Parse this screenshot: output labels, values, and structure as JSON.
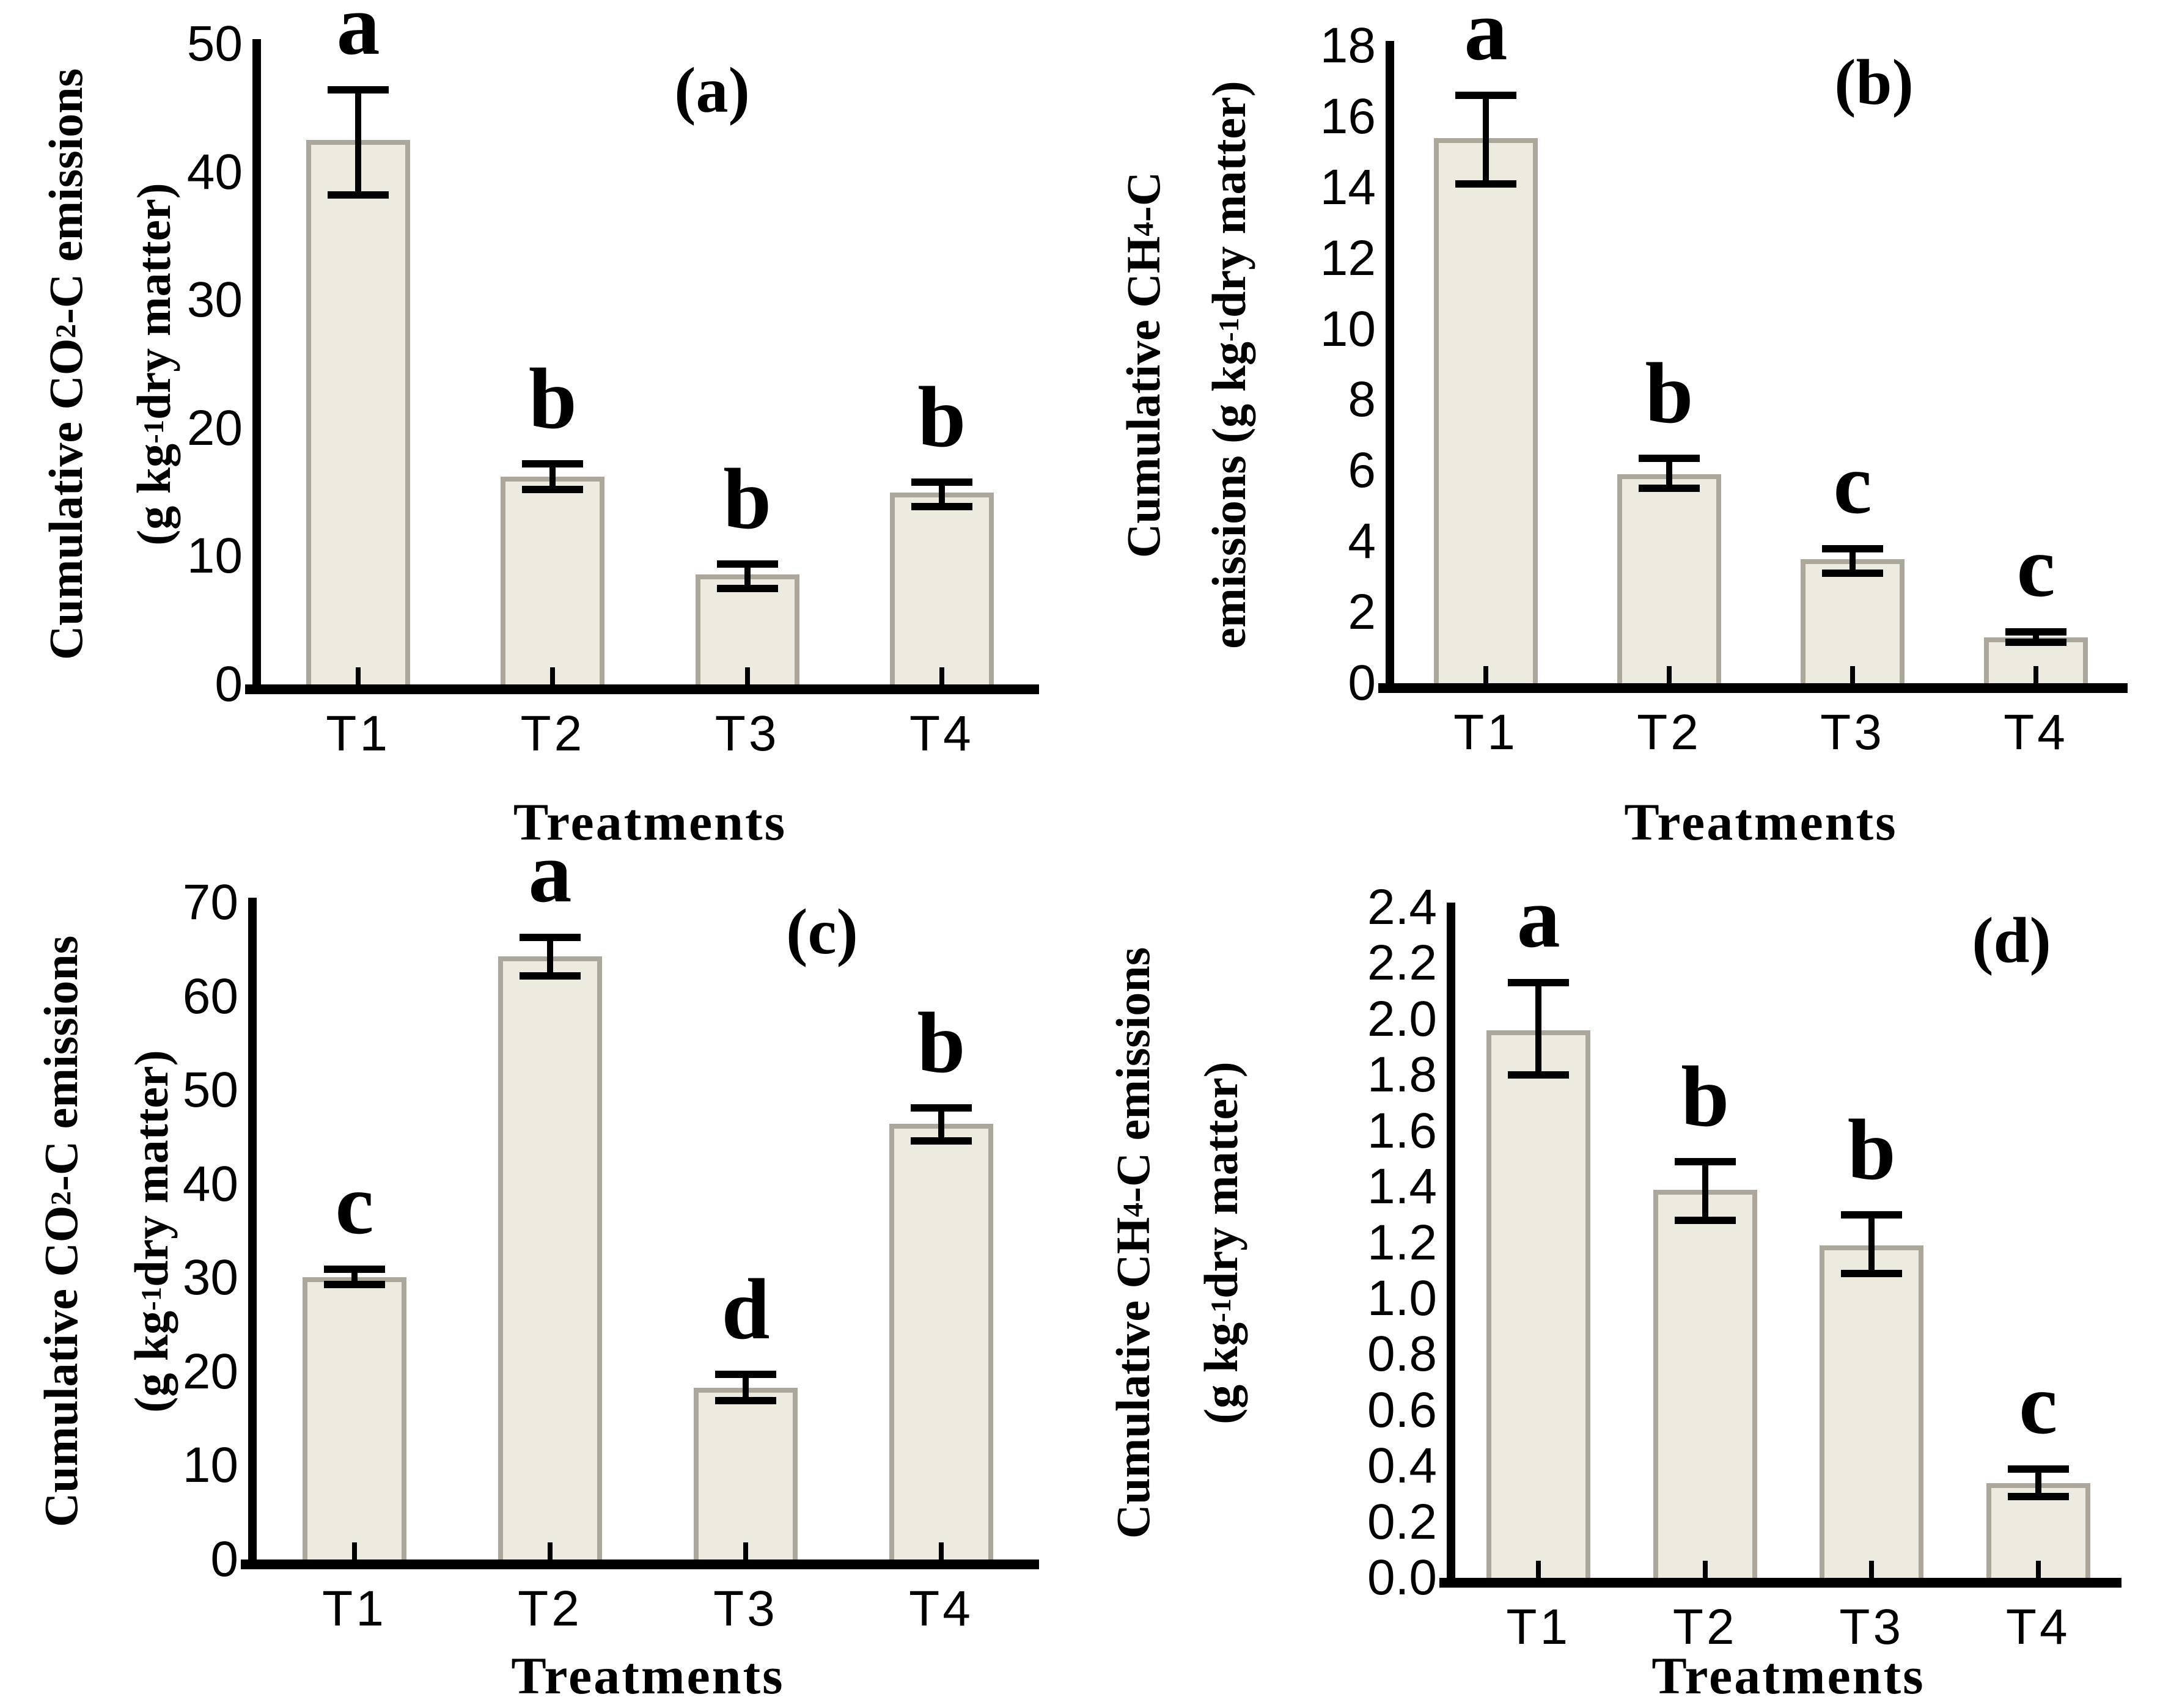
{
  "colors": {
    "background": "#ffffff",
    "bar_fill": "#edebe0",
    "bar_border": "#aba89b",
    "axis": "#000000",
    "text": "#000000"
  },
  "chart_data": [
    {
      "id": "a",
      "type": "bar",
      "panel_label": "(a)",
      "ylabel": "Cumulative CO2-C emissions (g kg-1 dry matter)",
      "ylabel_line1_parts": {
        "pre": "Cumulative CO",
        "sub": "2",
        "post": "-C emissions"
      },
      "ylabel_line2_parts": {
        "pre": "(g kg",
        "sup": "-1",
        "post": " dry matter)"
      },
      "xlabel": "Treatments",
      "categories": [
        "T1",
        "T2",
        "T3",
        "T4"
      ],
      "values": [
        42.5,
        16.2,
        8.6,
        15.0
      ],
      "error_low": [
        38.2,
        15.2,
        7.5,
        13.9
      ],
      "error_high": [
        46.4,
        17.2,
        9.4,
        15.8
      ],
      "sig_letters": [
        "a",
        "b",
        "b",
        "b"
      ],
      "ylim": [
        0,
        50
      ],
      "ytick_labels": [
        "0",
        "10",
        "20",
        "30",
        "40",
        "50"
      ],
      "grid": "off",
      "legend": "none"
    },
    {
      "id": "b",
      "type": "bar",
      "panel_label": "(b)",
      "ylabel": "Cumulative CH4-C emissions (g kg-1 dry matter)",
      "ylabel_line1_parts": {
        "pre": "Cumulative CH",
        "sub": "4",
        "post": "-C"
      },
      "ylabel_line2_parts": {
        "pre": "emissions (g kg",
        "sup": "-1",
        "post": " dry matter)"
      },
      "xlabel": "Treatments",
      "categories": [
        "T1",
        "T2",
        "T3",
        "T4"
      ],
      "values": [
        15.4,
        5.9,
        3.5,
        1.3
      ],
      "error_low": [
        14.1,
        5.5,
        3.1,
        1.15
      ],
      "error_high": [
        16.6,
        6.35,
        3.8,
        1.45
      ],
      "sig_letters": [
        "a",
        "b",
        "c",
        "c"
      ],
      "ylim": [
        0,
        18
      ],
      "ytick_labels": [
        "0",
        "2",
        "4",
        "6",
        "8",
        "10",
        "12",
        "14",
        "16",
        "18"
      ],
      "grid": "off",
      "legend": "none"
    },
    {
      "id": "c",
      "type": "bar",
      "panel_label": "(c)",
      "ylabel": "Cumulative CO2-C emissions (g kg-1 dry matter)",
      "ylabel_line1_parts": {
        "pre": "Cumulative CO",
        "sub": "2",
        "post": "-C emissions"
      },
      "ylabel_line2_parts": {
        "pre": "(g kg",
        "sup": "-1",
        "post": " dry matter)"
      },
      "xlabel": "Treatments",
      "categories": [
        "T1",
        "T2",
        "T3",
        "T4"
      ],
      "values": [
        30.1,
        64.3,
        18.3,
        46.4
      ],
      "error_low": [
        29.3,
        62.2,
        16.9,
        44.6
      ],
      "error_high": [
        30.9,
        66.3,
        19.7,
        48.1
      ],
      "sig_letters": [
        "c",
        "a",
        "d",
        "b"
      ],
      "ylim": [
        0,
        70
      ],
      "ytick_labels": [
        "0",
        "10",
        "20",
        "30",
        "40",
        "50",
        "60",
        "70"
      ],
      "grid": "off",
      "legend": "none"
    },
    {
      "id": "d",
      "type": "bar",
      "panel_label": "(d)",
      "ylabel": "Cumulative CH4-C emissions (g kg-1 dry matter)",
      "ylabel_line1_parts": {
        "pre": "Cumulative CH",
        "sub": "4",
        "post": "-C emissions"
      },
      "ylabel_line2_parts": {
        "pre": "(g kg",
        "sup": "-1",
        "post": " dry matter)"
      },
      "xlabel": "Treatments",
      "categories": [
        "T1",
        "T2",
        "T3",
        "T4"
      ],
      "values": [
        1.96,
        1.39,
        1.19,
        0.34
      ],
      "error_low": [
        1.8,
        1.28,
        1.09,
        0.29
      ],
      "error_high": [
        2.13,
        1.49,
        1.3,
        0.39
      ],
      "sig_letters": [
        "a",
        "b",
        "b",
        "c"
      ],
      "ylim": [
        0,
        2.4
      ],
      "ytick_labels": [
        "0.0",
        "0.2",
        "0.4",
        "0.6",
        "0.8",
        "1.0",
        "1.2",
        "1.4",
        "1.6",
        "1.8",
        "2.0",
        "2.2",
        "2.4"
      ],
      "grid": "off",
      "legend": "none"
    }
  ]
}
